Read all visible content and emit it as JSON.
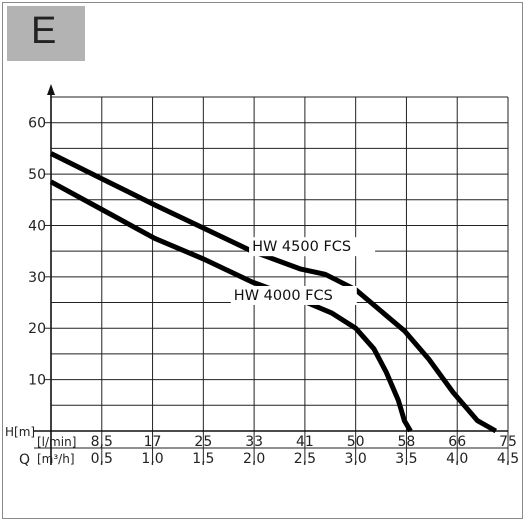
{
  "badge": {
    "letter": "E"
  },
  "chart_data": {
    "type": "line",
    "title": "",
    "ylabel": "H[m]",
    "ylim": [
      0,
      65
    ],
    "yticks": [
      "10",
      "20",
      "30",
      "40",
      "50",
      "60"
    ],
    "q_label": "Q",
    "x_axes": [
      {
        "unit": "[l/min]",
        "ticks": [
          "8,5",
          "17",
          "25",
          "33",
          "41",
          "50",
          "58",
          "66",
          "75"
        ]
      },
      {
        "unit": "[m³/h]",
        "ticks": [
          "0,5",
          "1,0",
          "1,5",
          "2,0",
          "2,5",
          "3,0",
          "3,5",
          "4,0",
          "4,5"
        ]
      }
    ],
    "xlim": [
      0,
      75
    ],
    "series": [
      {
        "name": "HW 4500 FCS",
        "x": [
          0,
          8.5,
          17,
          25,
          33,
          41,
          45,
          50,
          58,
          62,
          66,
          70,
          73
        ],
        "y": [
          54,
          49,
          44,
          39.5,
          35,
          31.5,
          30.5,
          27.5,
          19.5,
          14,
          7.5,
          2,
          0
        ]
      },
      {
        "name": "HW 4000 FCS",
        "x": [
          0,
          8.5,
          17,
          25,
          33,
          41,
          46,
          50,
          53,
          55,
          57,
          58,
          59
        ],
        "y": [
          48.5,
          43,
          37.5,
          33.5,
          29,
          25.5,
          23,
          20,
          16,
          11.5,
          6,
          2,
          0
        ]
      }
    ]
  }
}
